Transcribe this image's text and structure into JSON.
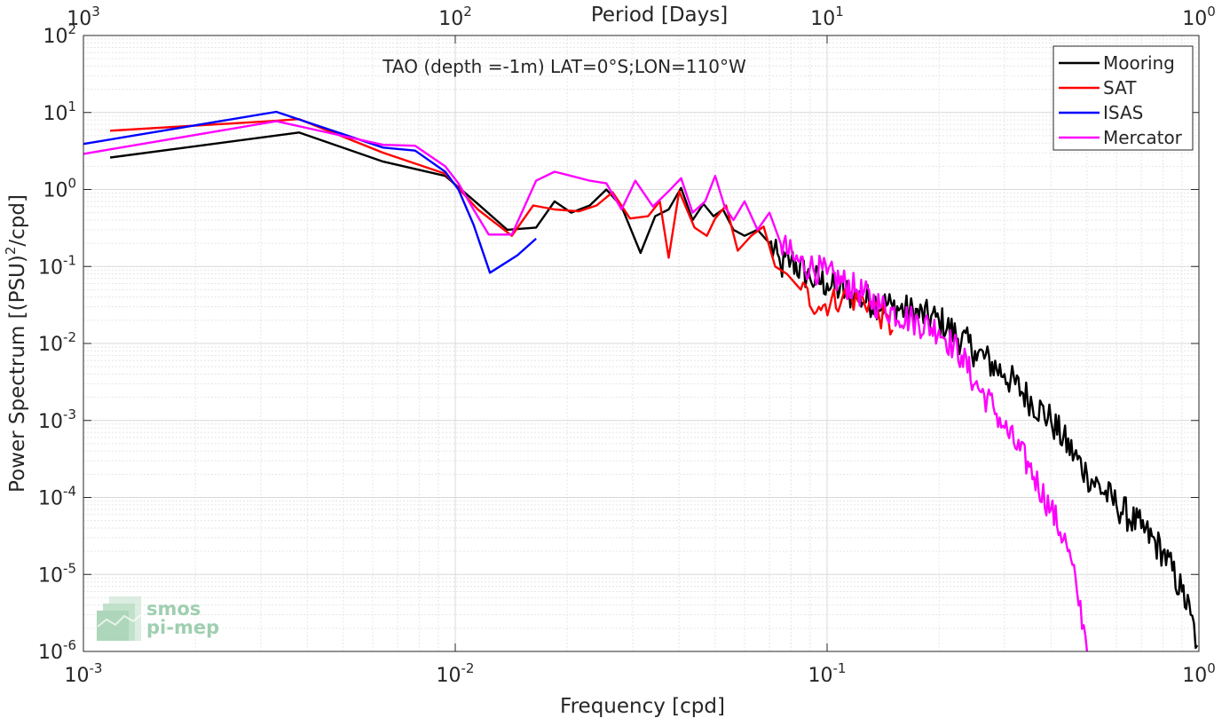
{
  "chart_data": {
    "type": "line",
    "title": "TAO (depth =-1m) LAT=0°S;LON=110°W",
    "xlabel": "Frequency [cpd]",
    "ylabel": "Power Spectrum [(PSU)",
    "ylabel_sup": "2",
    "ylabel_tail": "/cpd]",
    "top_xlabel": "Period [Days]",
    "xscale": "log",
    "yscale": "log",
    "xlim": [
      0.001,
      1
    ],
    "ylim": [
      1e-06,
      100
    ],
    "grid": true,
    "legend_position": "top-right",
    "x_ticks": [
      0.001,
      0.01,
      0.1,
      1
    ],
    "x_tick_labels": [
      {
        "base": "10",
        "exp": "-3"
      },
      {
        "base": "10",
        "exp": "-2"
      },
      {
        "base": "10",
        "exp": "-1"
      },
      {
        "base": "10",
        "exp": "0"
      }
    ],
    "top_x_ticks": [
      0.001,
      0.01,
      0.1,
      1
    ],
    "top_x_tick_labels": [
      {
        "base": "10",
        "exp": "3"
      },
      {
        "base": "10",
        "exp": "2"
      },
      {
        "base": "10",
        "exp": "1"
      },
      {
        "base": "10",
        "exp": "0"
      }
    ],
    "y_ticks": [
      1e-06,
      1e-05,
      0.0001,
      0.001,
      0.01,
      0.1,
      1,
      10,
      100
    ],
    "y_tick_labels": [
      {
        "base": "10",
        "exp": "-6"
      },
      {
        "base": "10",
        "exp": "-5"
      },
      {
        "base": "10",
        "exp": "-4"
      },
      {
        "base": "10",
        "exp": "-3"
      },
      {
        "base": "10",
        "exp": "-2"
      },
      {
        "base": "10",
        "exp": "-1"
      },
      {
        "base": "10",
        "exp": "0"
      },
      {
        "base": "10",
        "exp": "1"
      },
      {
        "base": "10",
        "exp": "2"
      }
    ],
    "series": [
      {
        "name": "Mooring",
        "color": "#000000",
        "style": "noisy-extend",
        "x": [
          0.00118,
          0.0038,
          0.0064,
          0.0094,
          0.0115,
          0.0138,
          0.0165,
          0.0185,
          0.0205,
          0.023,
          0.0255,
          0.028,
          0.0315,
          0.0345,
          0.0375,
          0.0405,
          0.0435,
          0.0465,
          0.0495,
          0.0525,
          0.056,
          0.06,
          0.065,
          0.07,
          0.075,
          0.08,
          0.09,
          0.1,
          0.12,
          0.15,
          0.2,
          0.25,
          0.3,
          0.4,
          0.5,
          0.6,
          0.7,
          0.8,
          0.9,
          0.95,
          0.99
        ],
        "y": [
          2.6,
          5.5,
          2.3,
          1.5,
          0.65,
          0.3,
          0.32,
          0.7,
          0.5,
          0.62,
          1.0,
          0.6,
          0.15,
          0.45,
          0.55,
          1.05,
          0.4,
          0.65,
          0.45,
          0.55,
          0.3,
          0.25,
          0.3,
          0.2,
          0.1,
          0.12,
          0.07,
          0.06,
          0.04,
          0.03,
          0.02,
          0.008,
          0.004,
          0.001,
          0.0002,
          8e-05,
          4e-05,
          2e-05,
          6e-06,
          3e-06,
          1.2e-06
        ]
      },
      {
        "name": "SAT",
        "color": "#ff0000",
        "style": "noisy-end",
        "x": [
          0.00118,
          0.0033,
          0.0038,
          0.0064,
          0.0094,
          0.0115,
          0.0142,
          0.0162,
          0.0185,
          0.0215,
          0.024,
          0.0265,
          0.0295,
          0.033,
          0.0355,
          0.0375,
          0.04,
          0.044,
          0.0475,
          0.05,
          0.0535,
          0.0575,
          0.0625,
          0.0675,
          0.0725,
          0.078,
          0.085,
          0.095,
          0.11,
          0.13,
          0.15
        ],
        "y": [
          5.8,
          7.8,
          8.2,
          3.0,
          1.6,
          0.55,
          0.25,
          0.62,
          0.55,
          0.52,
          0.62,
          0.92,
          0.42,
          0.45,
          0.7,
          0.13,
          0.95,
          0.32,
          0.25,
          0.42,
          0.62,
          0.16,
          0.25,
          0.33,
          0.1,
          0.08,
          0.05,
          0.03,
          0.04,
          0.035,
          0.015
        ]
      },
      {
        "name": "ISAS",
        "color": "#0000ff",
        "style": "plain",
        "x": [
          0.001,
          0.0033,
          0.0064,
          0.0078,
          0.0094,
          0.0102,
          0.0112,
          0.0124,
          0.0147,
          0.0165
        ],
        "y": [
          3.9,
          10.2,
          3.5,
          3.2,
          1.7,
          1.0,
          0.35,
          0.083,
          0.14,
          0.23
        ]
      },
      {
        "name": "Mercator",
        "color": "#ff00ff",
        "style": "noisy-drop",
        "x": [
          0.001,
          0.0033,
          0.0064,
          0.0078,
          0.0094,
          0.0102,
          0.0112,
          0.0123,
          0.0142,
          0.0165,
          0.0185,
          0.0205,
          0.023,
          0.0255,
          0.028,
          0.0305,
          0.034,
          0.0375,
          0.0405,
          0.0435,
          0.047,
          0.05,
          0.053,
          0.056,
          0.06,
          0.065,
          0.07,
          0.075,
          0.082,
          0.09,
          0.1,
          0.12,
          0.14,
          0.17,
          0.2,
          0.23,
          0.25,
          0.28,
          0.3,
          0.35,
          0.4,
          0.44,
          0.47,
          0.49,
          0.5
        ],
        "y": [
          2.9,
          7.7,
          3.8,
          3.7,
          2.0,
          1.2,
          0.55,
          0.26,
          0.26,
          1.3,
          1.7,
          1.5,
          1.3,
          1.2,
          0.55,
          1.3,
          0.6,
          0.95,
          1.4,
          0.5,
          0.7,
          1.5,
          0.6,
          0.4,
          0.7,
          0.3,
          0.5,
          0.2,
          0.12,
          0.1,
          0.08,
          0.05,
          0.03,
          0.02,
          0.015,
          0.007,
          0.003,
          0.0015,
          0.0008,
          0.00025,
          7e-05,
          2.5e-05,
          6e-06,
          2.2e-06,
          1e-06
        ]
      }
    ]
  },
  "logo": {
    "line1": "smos",
    "line2": "pi-mep"
  }
}
